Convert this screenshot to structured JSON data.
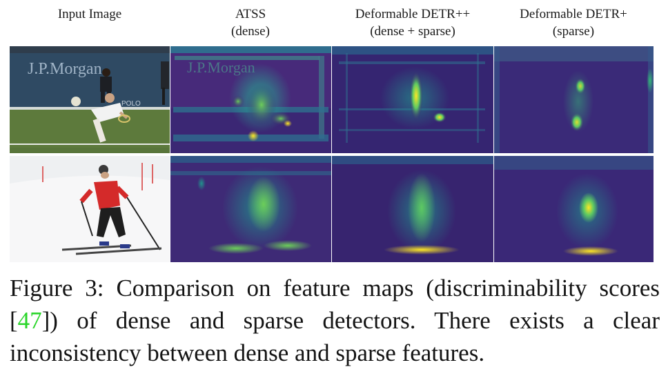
{
  "columns": [
    {
      "line1": "Input Image",
      "line2": ""
    },
    {
      "line1": "ATSS",
      "line2": "(dense)"
    },
    {
      "line1": "Deformable DETR++",
      "line2": "(dense + sparse)"
    },
    {
      "line1": "Deformable DETR+",
      "line2": "(sparse)"
    }
  ],
  "photos": {
    "row1": {
      "banner": "J.P.Morgan",
      "sponsor": "POLO"
    }
  },
  "caption": {
    "prefix": "Figure 3:  Comparison on feature maps (discriminability scores [",
    "cite": "47",
    "suffix": "]) of dense and sparse detectors.  There exists a clear inconsistency between dense and sparse features."
  },
  "colors": {
    "heat_low": "#3b1d6e",
    "heat_mid": "#21918c",
    "heat_high": "#fde725",
    "citation": "#2bd62b"
  }
}
